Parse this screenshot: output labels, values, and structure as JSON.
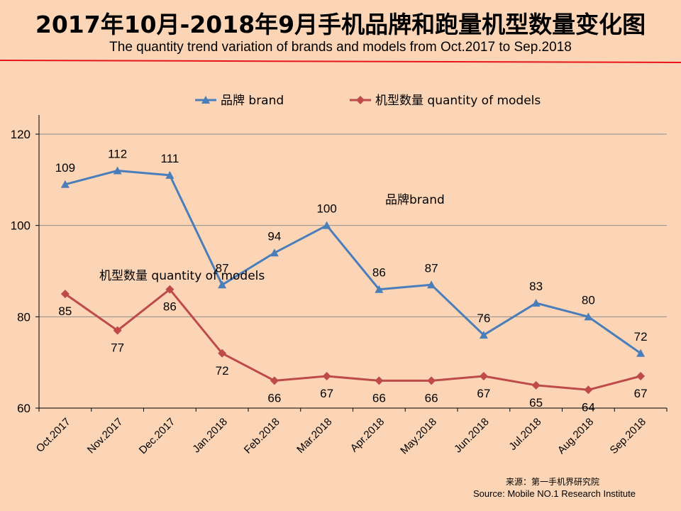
{
  "title_cn": "2017年10月-2018年9月手机品牌和跑量机型数量变化图",
  "title_en": "The quantity trend variation of brands and models from  Oct.2017 to Sep.2018",
  "source_cn": "来源：第一手机界研究院",
  "source_en": "Source: Mobile NO.1 Research Institute",
  "colors": {
    "background": "#FBD5B5",
    "brand": "#4A7EBB",
    "models": "#BE4B48",
    "rule": "#E8161A",
    "grid": "#8C8C8C"
  },
  "chart_data": {
    "type": "line",
    "categories": [
      "Oct.2017",
      "Nov.2017",
      "Dec.2017",
      "Jan.2018",
      "Feb.2018",
      "Mar.2018",
      "Apr.2018",
      "May.2018",
      "Jun.2018",
      "Jul.2018",
      "Aug.2018",
      "Sep.2018"
    ],
    "series": [
      {
        "name": "品牌 brand",
        "marker": "triangle",
        "values": [
          109,
          112,
          111,
          87,
          94,
          100,
          86,
          87,
          76,
          83,
          80,
          72
        ]
      },
      {
        "name": "机型数量 quantity of models",
        "marker": "diamond",
        "values": [
          85,
          77,
          86,
          72,
          66,
          67,
          66,
          66,
          67,
          65,
          64,
          67
        ]
      }
    ],
    "ylim": [
      60,
      120
    ],
    "yticks": [
      60,
      80,
      100,
      120
    ],
    "legend_position": "top",
    "annotations": [
      "品牌brand",
      "机型数量 quantity of models"
    ]
  }
}
